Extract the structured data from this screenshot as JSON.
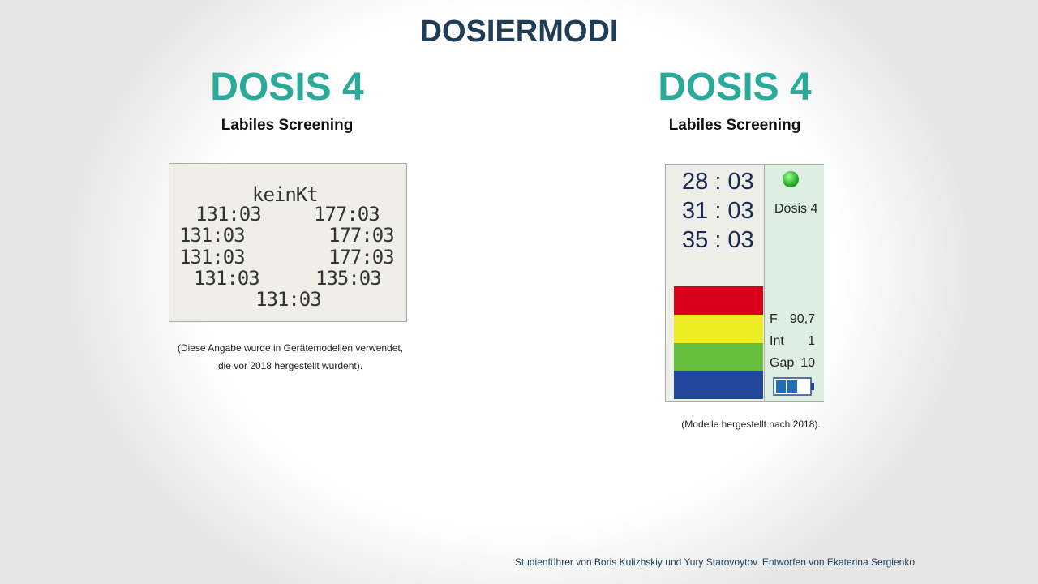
{
  "header": {
    "title": "DOSIERMODI"
  },
  "left": {
    "heading": "DOSIS 4",
    "subheading": "Labiles Screening",
    "display": {
      "top": "keinKt",
      "rows": [
        [
          "131:03",
          "177:03"
        ],
        [
          "131:03",
          "177:03"
        ],
        [
          "131:03",
          "177:03"
        ],
        [
          "131:03",
          "135:03"
        ]
      ],
      "bottom": "131:03"
    },
    "note": "(Diese Angabe wurde in Gerätemodellen verwendet, die vor 2018 hergestellt wurdent)."
  },
  "right": {
    "heading": "DOSIS 4",
    "subheading": "Labiles Screening",
    "display": {
      "times": [
        "28 : 03",
        "31 : 03",
        "35 : 03"
      ],
      "mode": "Dosis 4",
      "params": [
        [
          "F",
          "90,7"
        ],
        [
          "Int",
          "1"
        ],
        [
          "Gap",
          "10"
        ]
      ]
    },
    "note": "(Modelle hergestellt nach 2018)."
  },
  "footer": {
    "credit": "Studienführer von Boris Kulizhskiy und Yury Starovoytov. Entworfen von Ekaterina Sergienko"
  }
}
